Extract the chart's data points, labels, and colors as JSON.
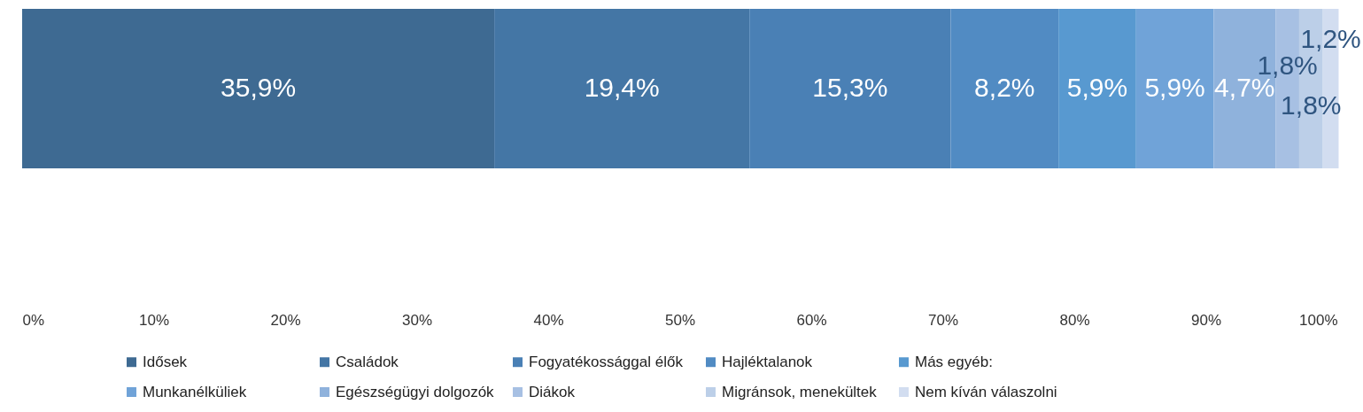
{
  "chart_data": {
    "type": "bar",
    "orientation": "horizontal",
    "stacked": true,
    "categories": [
      null
    ],
    "series": [
      {
        "name": "Idősek",
        "color": "#3e6a92",
        "values": [
          35.9
        ],
        "value_labels": [
          "35,9%"
        ]
      },
      {
        "name": "Családok",
        "color": "#4476a5",
        "values": [
          19.4
        ],
        "value_labels": [
          "19,4%"
        ]
      },
      {
        "name": "Fogyatékossággal élők",
        "color": "#4a80b5",
        "values": [
          15.3
        ],
        "value_labels": [
          "15,3%"
        ]
      },
      {
        "name": "Hajléktalanok",
        "color": "#518bc3",
        "values": [
          8.2
        ],
        "value_labels": [
          "8,2%"
        ]
      },
      {
        "name": "Más egyéb:",
        "color": "#5899d0",
        "values": [
          5.9
        ],
        "value_labels": [
          "5,9%"
        ]
      },
      {
        "name": "Munkanélküliek",
        "color": "#70a3d8",
        "values": [
          5.9
        ],
        "value_labels": [
          "5,9%"
        ]
      },
      {
        "name": "Egészségügyi dolgozók",
        "color": "#8fb2dc",
        "values": [
          4.7
        ],
        "value_labels": [
          "4,7%"
        ]
      },
      {
        "name": "Diákok",
        "color": "#a7c0e3",
        "values": [
          1.8
        ],
        "value_labels": [
          "1,8%"
        ]
      },
      {
        "name": "Migránsok, menekültek",
        "color": "#bccfe8",
        "values": [
          1.8
        ],
        "value_labels": [
          "1,8%"
        ]
      },
      {
        "name": "Nem kíván válaszolni",
        "color": "#d2ddf0",
        "values": [
          1.2
        ],
        "value_labels": [
          "1,2%"
        ]
      }
    ],
    "xlim": [
      0,
      100
    ],
    "xticks": [
      {
        "value": 0,
        "label": "0%"
      },
      {
        "value": 10,
        "label": "10%"
      },
      {
        "value": 20,
        "label": "20%"
      },
      {
        "value": 30,
        "label": "30%"
      },
      {
        "value": 40,
        "label": "40%"
      },
      {
        "value": 50,
        "label": "50%"
      },
      {
        "value": 60,
        "label": "60%"
      },
      {
        "value": 70,
        "label": "70%"
      },
      {
        "value": 80,
        "label": "80%"
      },
      {
        "value": 90,
        "label": "90%"
      },
      {
        "value": 100,
        "label": "100%"
      }
    ],
    "grid": false,
    "legend": "bottom"
  }
}
